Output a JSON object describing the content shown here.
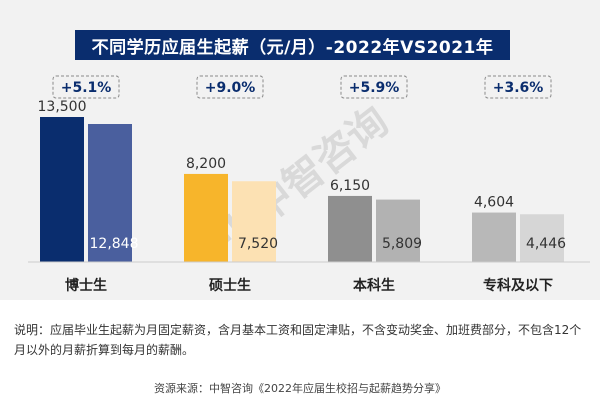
{
  "watermark": "中智咨询",
  "watermark_logo": "ciic",
  "note": "说明：应届毕业生起薪为月固定薪资，含月基本工资和固定津贴，不含变动奖金、加班费部分，不包含12个月以外的月薪折算到每月的薪酬。",
  "source": "资源来源：中智咨询《2022年应届生校招与起薪趋势分享》",
  "chart_data": {
    "type": "bar",
    "title": "不同学历应届生起薪（元/月）-2022年VS2021年",
    "categories": [
      "博士生",
      "硕士生",
      "本科生",
      "专科及以下"
    ],
    "series": [
      {
        "name": "2022年",
        "values": [
          13500,
          8200,
          6150,
          4604
        ],
        "labels": [
          "13,500",
          "8,200",
          "6,150",
          "4,604"
        ]
      },
      {
        "name": "2021年",
        "values": [
          12848,
          7520,
          5809,
          4446
        ],
        "labels": [
          "12,848",
          "7,520",
          "5,809",
          "4,446"
        ]
      }
    ],
    "growth": [
      "+5.1%",
      "+9.0%",
      "+5.9%",
      "+3.6%"
    ],
    "ylim": [
      0,
      13500
    ],
    "colors": {
      "2022": [
        "#0a2d6e",
        "#f7b52b",
        "#8f8f8f",
        "#b8b8b8"
      ],
      "2021": [
        "#4a5f9e",
        "#fce1b3",
        "#b2b2b2",
        "#d6d6d6"
      ]
    },
    "title_bg": "#0a2d6e",
    "grid": false,
    "legend": "none"
  }
}
